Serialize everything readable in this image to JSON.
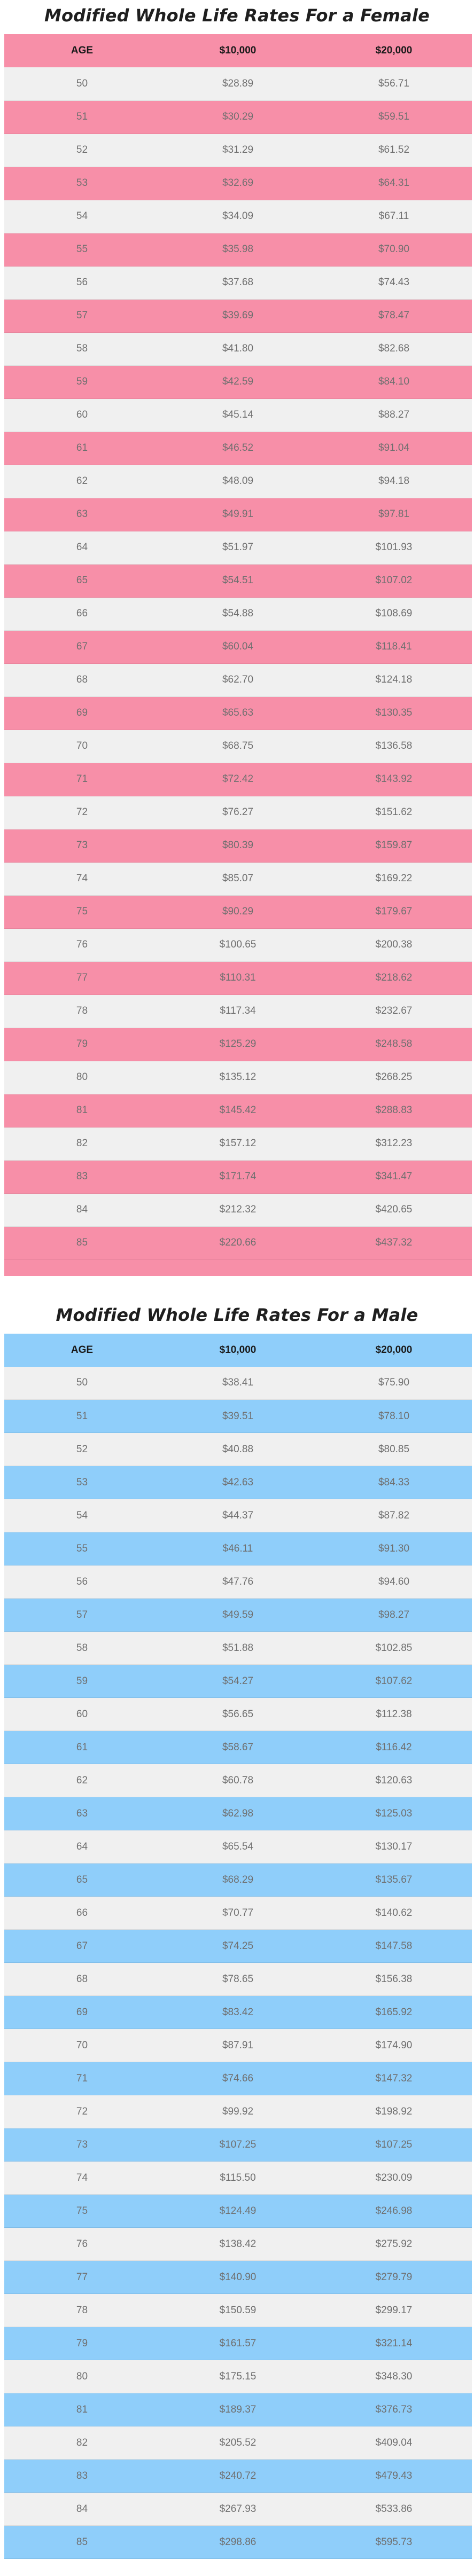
{
  "female": {
    "title": "Modified Whole Life Rates For a Female",
    "headers": {
      "age": "AGE",
      "amount1": "$10,000",
      "amount2": "$20,000"
    },
    "colors": {
      "accent": "#f78fa8",
      "light": "#f0f0f0"
    },
    "rows": [
      [
        "50",
        "$28.89",
        "$56.71"
      ],
      [
        "51",
        "$30.29",
        "$59.51"
      ],
      [
        "52",
        "$31.29",
        "$61.52"
      ],
      [
        "53",
        "$32.69",
        "$64.31"
      ],
      [
        "54",
        "$34.09",
        "$67.11"
      ],
      [
        "55",
        "$35.98",
        "$70.90"
      ],
      [
        "56",
        "$37.68",
        "$74.43"
      ],
      [
        "57",
        "$39.69",
        "$78.47"
      ],
      [
        "58",
        "$41.80",
        "$82.68"
      ],
      [
        "59",
        "$42.59",
        "$84.10"
      ],
      [
        "60",
        "$45.14",
        "$88.27"
      ],
      [
        "61",
        "$46.52",
        "$91.04"
      ],
      [
        "62",
        "$48.09",
        "$94.18"
      ],
      [
        "63",
        "$49.91",
        "$97.81"
      ],
      [
        "64",
        "$51.97",
        "$101.93"
      ],
      [
        "65",
        "$54.51",
        "$107.02"
      ],
      [
        "66",
        "$54.88",
        "$108.69"
      ],
      [
        "67",
        "$60.04",
        "$118.41"
      ],
      [
        "68",
        "$62.70",
        "$124.18"
      ],
      [
        "69",
        "$65.63",
        "$130.35"
      ],
      [
        "70",
        "$68.75",
        "$136.58"
      ],
      [
        "71",
        "$72.42",
        "$143.92"
      ],
      [
        "72",
        "$76.27",
        "$151.62"
      ],
      [
        "73",
        "$80.39",
        "$159.87"
      ],
      [
        "74",
        "$85.07",
        "$169.22"
      ],
      [
        "75",
        "$90.29",
        "$179.67"
      ],
      [
        "76",
        "$100.65",
        "$200.38"
      ],
      [
        "77",
        "$110.31",
        "$218.62"
      ],
      [
        "78",
        "$117.34",
        "$232.67"
      ],
      [
        "79",
        "$125.29",
        "$248.58"
      ],
      [
        "80",
        "$135.12",
        "$268.25"
      ],
      [
        "81",
        "$145.42",
        "$288.83"
      ],
      [
        "82",
        "$157.12",
        "$312.23"
      ],
      [
        "83",
        "$171.74",
        "$341.47"
      ],
      [
        "84",
        "$212.32",
        "$420.65"
      ],
      [
        "85",
        "$220.66",
        "$437.32"
      ]
    ]
  },
  "male": {
    "title": "Modified Whole Life Rates For a Male",
    "headers": {
      "age": "AGE",
      "amount1": "$10,000",
      "amount2": "$20,000"
    },
    "colors": {
      "accent": "#8fcefa",
      "light": "#f0f0f0"
    },
    "rows": [
      [
        "50",
        "$38.41",
        "$75.90"
      ],
      [
        "51",
        "$39.51",
        "$78.10"
      ],
      [
        "52",
        "$40.88",
        "$80.85"
      ],
      [
        "53",
        "$42.63",
        "$84.33"
      ],
      [
        "54",
        "$44.37",
        "$87.82"
      ],
      [
        "55",
        "$46.11",
        "$91.30"
      ],
      [
        "56",
        "$47.76",
        "$94.60"
      ],
      [
        "57",
        "$49.59",
        "$98.27"
      ],
      [
        "58",
        "$51.88",
        "$102.85"
      ],
      [
        "59",
        "$54.27",
        "$107.62"
      ],
      [
        "60",
        "$56.65",
        "$112.38"
      ],
      [
        "61",
        "$58.67",
        "$116.42"
      ],
      [
        "62",
        "$60.78",
        "$120.63"
      ],
      [
        "63",
        "$62.98",
        "$125.03"
      ],
      [
        "64",
        "$65.54",
        "$130.17"
      ],
      [
        "65",
        "$68.29",
        "$135.67"
      ],
      [
        "66",
        "$70.77",
        "$140.62"
      ],
      [
        "67",
        "$74.25",
        "$147.58"
      ],
      [
        "68",
        "$78.65",
        "$156.38"
      ],
      [
        "69",
        "$83.42",
        "$165.92"
      ],
      [
        "70",
        "$87.91",
        "$174.90"
      ],
      [
        "71",
        "$74.66",
        "$147.32"
      ],
      [
        "72",
        "$99.92",
        "$198.92"
      ],
      [
        "73",
        "$107.25",
        "$107.25"
      ],
      [
        "74",
        "$115.50",
        "$230.09"
      ],
      [
        "75",
        "$124.49",
        "$246.98"
      ],
      [
        "76",
        "$138.42",
        "$275.92"
      ],
      [
        "77",
        "$140.90",
        "$279.79"
      ],
      [
        "78",
        "$150.59",
        "$299.17"
      ],
      [
        "79",
        "$161.57",
        "$321.14"
      ],
      [
        "80",
        "$175.15",
        "$348.30"
      ],
      [
        "81",
        "$189.37",
        "$376.73"
      ],
      [
        "82",
        "$205.52",
        "$409.04"
      ],
      [
        "83",
        "$240.72",
        "$479.43"
      ],
      [
        "84",
        "$267.93",
        "$533.86"
      ],
      [
        "85",
        "$298.86",
        "$595.73"
      ]
    ]
  }
}
